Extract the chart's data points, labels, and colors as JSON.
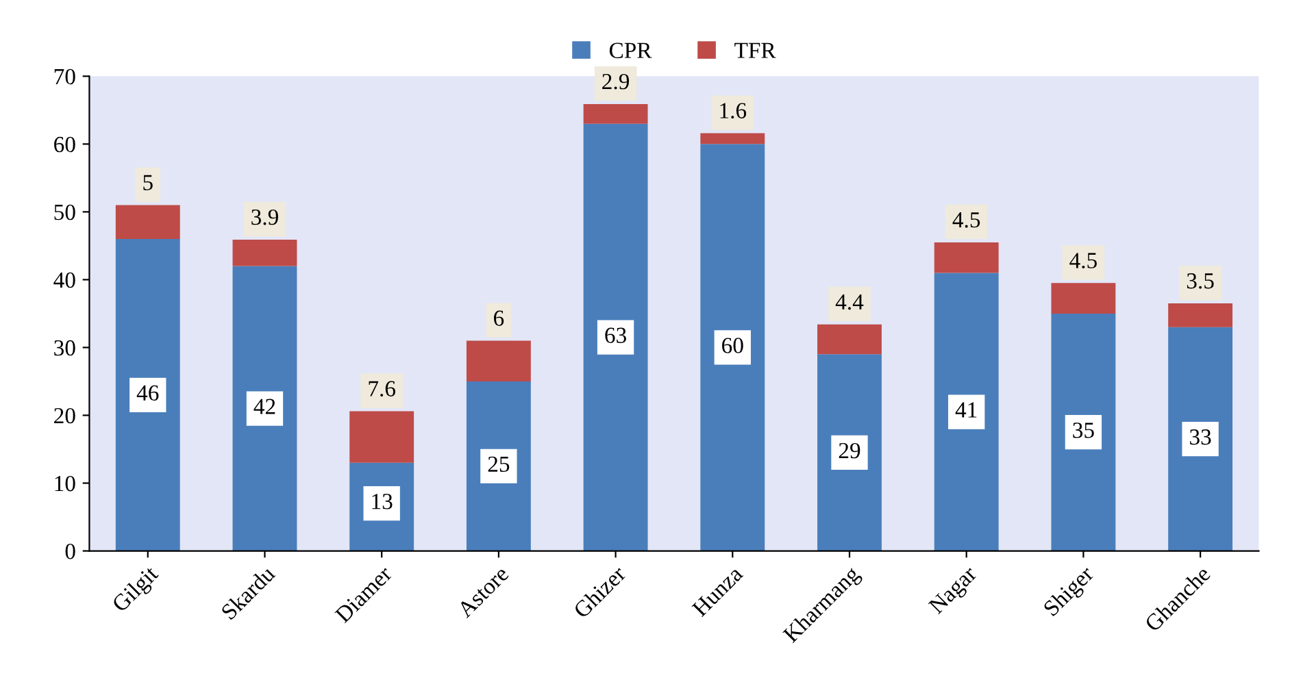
{
  "chart_data": {
    "type": "bar",
    "stacked": true,
    "categories": [
      "Gilgit",
      "Skardu",
      "Diamer",
      "Astore",
      "Ghizer",
      "Hunza",
      "Kharmang",
      "Nagar",
      "Shiger",
      "Ghanche"
    ],
    "series": [
      {
        "name": "CPR",
        "color": "#4a7ebb",
        "values": [
          46,
          42,
          13,
          25,
          63,
          60,
          29,
          41,
          35,
          33
        ]
      },
      {
        "name": "TFR",
        "color": "#be4b48",
        "values": [
          5,
          3.9,
          7.6,
          6,
          2.9,
          1.6,
          4.4,
          4.5,
          4.5,
          3.5
        ]
      }
    ],
    "ylim": [
      0,
      70
    ],
    "yticks": [
      0,
      10,
      20,
      30,
      40,
      50,
      60,
      70
    ],
    "legend": "top",
    "data_labels": true
  }
}
